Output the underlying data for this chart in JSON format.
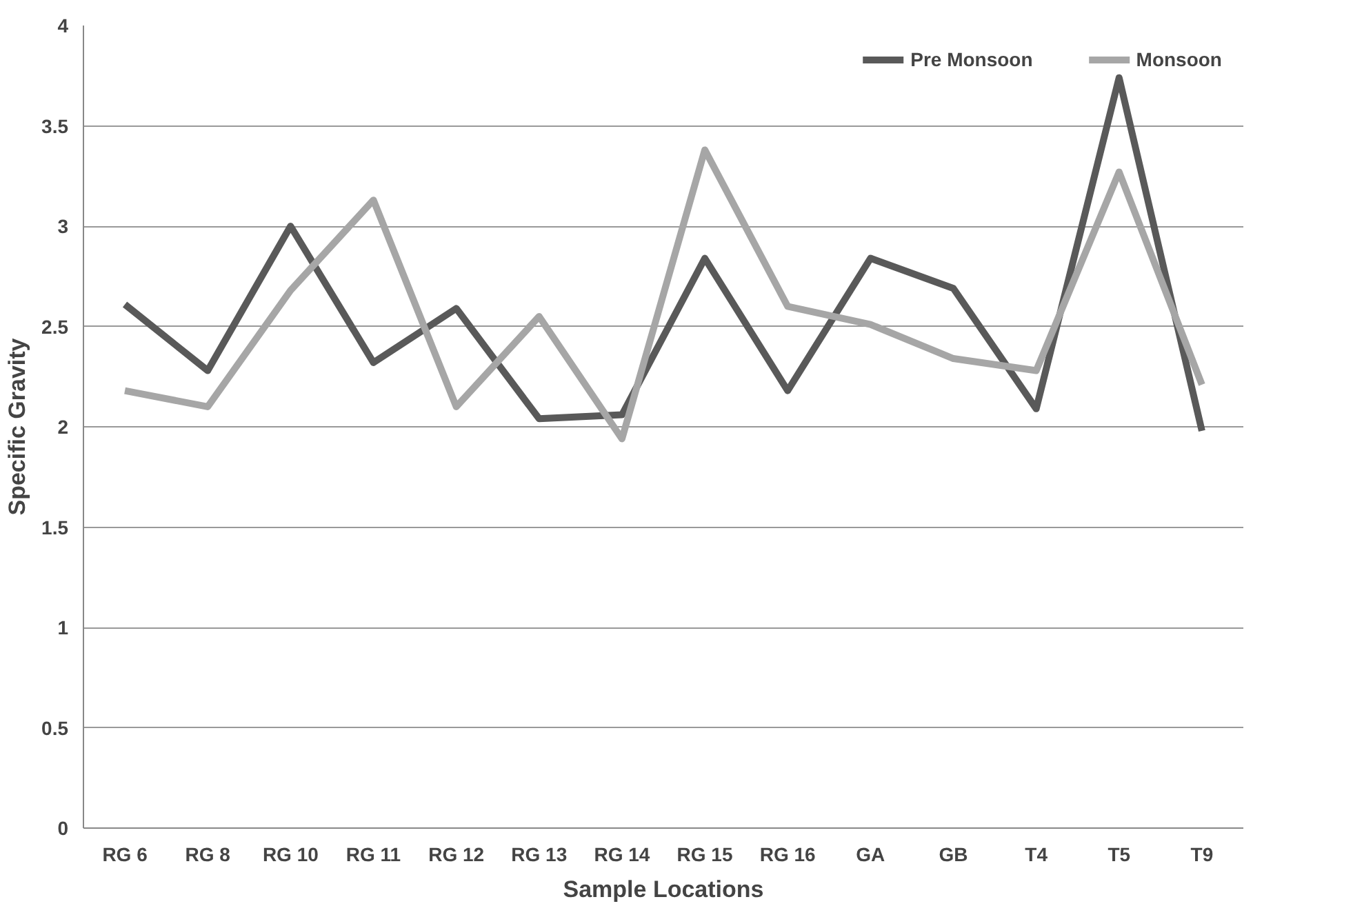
{
  "chart_data": {
    "type": "line",
    "xlabel": "Sample Locations",
    "ylabel": "Specific Gravity",
    "categories": [
      "RG 6",
      "RG 8",
      "RG 10",
      "RG 11",
      "RG 12",
      "RG 13",
      "RG 14",
      "RG 15",
      "RG 16",
      "GA",
      "GB",
      "T4",
      "T5",
      "T9"
    ],
    "series": [
      {
        "name": "Pre Monsoon",
        "color": "#595959",
        "values": [
          2.61,
          2.28,
          3.0,
          2.32,
          2.59,
          2.04,
          2.06,
          2.84,
          2.18,
          2.84,
          2.69,
          2.09,
          3.74,
          1.98
        ]
      },
      {
        "name": "Monsoon",
        "color": "#a6a6a6",
        "values": [
          2.18,
          2.1,
          2.68,
          3.13,
          2.1,
          2.55,
          1.94,
          3.38,
          2.6,
          2.51,
          2.34,
          2.28,
          3.27,
          2.21
        ]
      }
    ],
    "ylim": [
      0,
      4
    ],
    "yticks": [
      0,
      0.5,
      1,
      1.5,
      2,
      2.5,
      3,
      3.5,
      4
    ],
    "grid": "y",
    "legend": "top right",
    "marker": "none",
    "line_style": "solid"
  }
}
